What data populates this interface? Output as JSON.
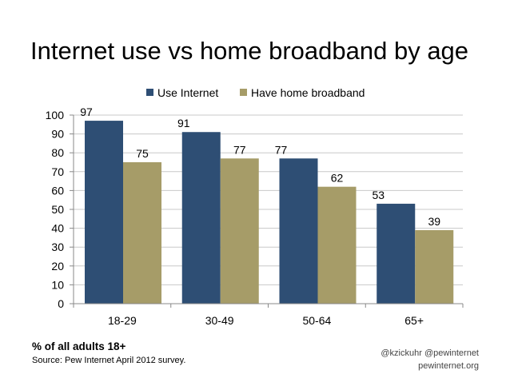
{
  "chart_data": {
    "type": "bar",
    "title": "Internet use vs home broadband by age",
    "categories": [
      "18-29",
      "30-49",
      "50-64",
      "65+"
    ],
    "series": [
      {
        "name": "Use Internet",
        "values": [
          97,
          91,
          77,
          53
        ],
        "color": "#2e4e74"
      },
      {
        "name": "Have home broadband",
        "values": [
          75,
          77,
          62,
          39
        ],
        "color": "#a69c68"
      }
    ],
    "ylim": [
      0,
      100
    ],
    "yticks": [
      "0",
      "10",
      "20",
      "30",
      "40",
      "50",
      "60",
      "70",
      "80",
      "90",
      "100"
    ],
    "grid": true,
    "legend": "top-center"
  },
  "footer": {
    "note": "% of all adults 18+",
    "source": "Source:  Pew Internet April 2012 survey.",
    "credit_handles": "@kzickuhr @pewinternet",
    "credit_site": "pewinternet.org"
  }
}
